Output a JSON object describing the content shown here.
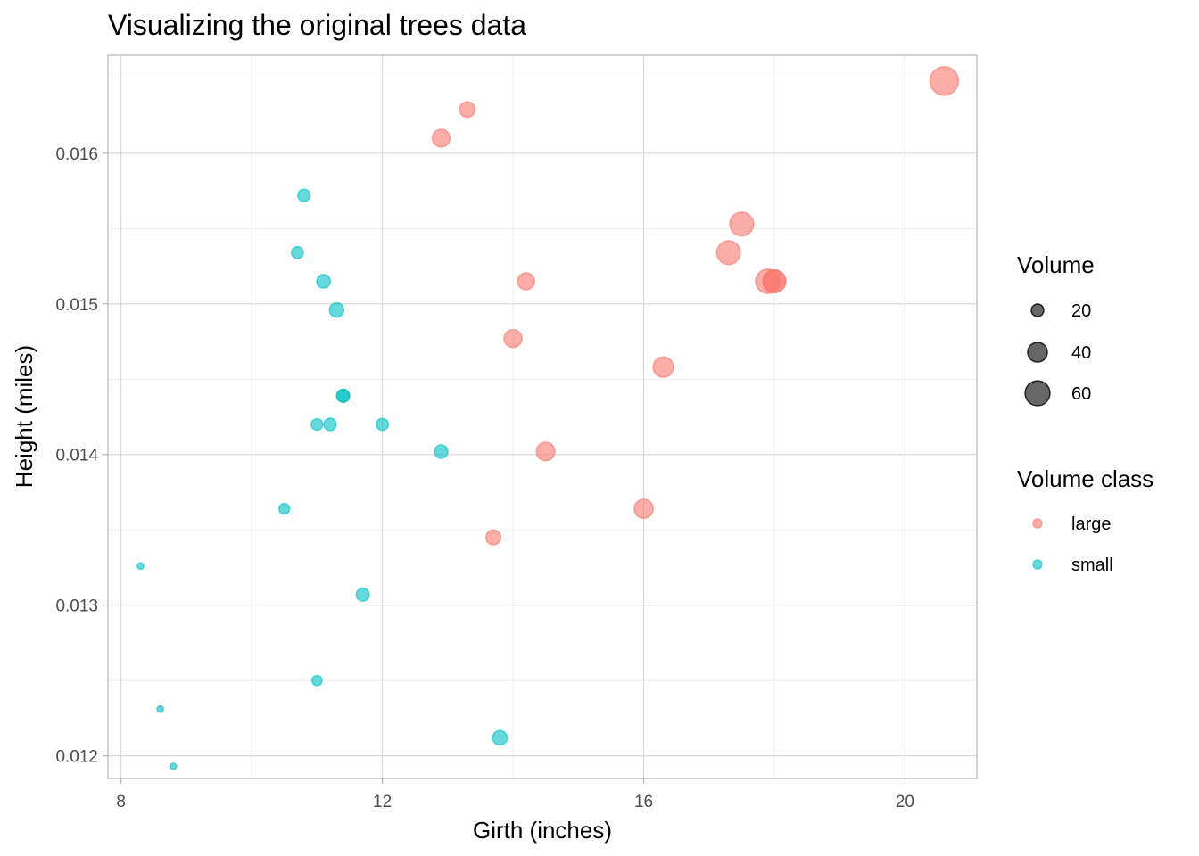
{
  "chart_data": {
    "type": "scatter",
    "title": "Visualizing the original trees data",
    "xlabel": "Girth (inches)",
    "ylabel": "Height (miles)",
    "xlim": [
      7.8,
      21.1
    ],
    "ylim": [
      0.01185,
      0.01665
    ],
    "x_ticks": [
      8,
      12,
      16,
      20
    ],
    "x_tick_labels": [
      "8",
      "12",
      "16",
      "20"
    ],
    "y_ticks": [
      0.012,
      0.013,
      0.014,
      0.015,
      0.016
    ],
    "y_tick_labels": [
      "0.012",
      "0.013",
      "0.014",
      "0.015",
      "0.016"
    ],
    "grid": true,
    "colors": {
      "large": "#F8766D",
      "small": "#00BFC4"
    },
    "size_legend": {
      "title": "Volume",
      "entries": [
        {
          "label": "20",
          "value": 20
        },
        {
          "label": "40",
          "value": 40
        },
        {
          "label": "60",
          "value": 60
        }
      ]
    },
    "color_legend": {
      "title": "Volume class",
      "entries": [
        {
          "label": "large",
          "key": "large"
        },
        {
          "label": "small",
          "key": "small"
        }
      ]
    },
    "points": [
      {
        "x": 8.3,
        "y": 0.01326,
        "volume": 10.3,
        "class": "small"
      },
      {
        "x": 8.6,
        "y": 0.01231,
        "volume": 10.3,
        "class": "small"
      },
      {
        "x": 8.8,
        "y": 0.01193,
        "volume": 10.2,
        "class": "small"
      },
      {
        "x": 10.5,
        "y": 0.01364,
        "volume": 16.4,
        "class": "small"
      },
      {
        "x": 10.7,
        "y": 0.01534,
        "volume": 18.8,
        "class": "small"
      },
      {
        "x": 10.8,
        "y": 0.01572,
        "volume": 19.7,
        "class": "small"
      },
      {
        "x": 11.0,
        "y": 0.0125,
        "volume": 15.6,
        "class": "small"
      },
      {
        "x": 11.0,
        "y": 0.0142,
        "volume": 18.2,
        "class": "small"
      },
      {
        "x": 11.1,
        "y": 0.01515,
        "volume": 22.6,
        "class": "small"
      },
      {
        "x": 11.2,
        "y": 0.0142,
        "volume": 19.9,
        "class": "small"
      },
      {
        "x": 11.3,
        "y": 0.01496,
        "volume": 24.2,
        "class": "small"
      },
      {
        "x": 11.4,
        "y": 0.01439,
        "volume": 21.0,
        "class": "small"
      },
      {
        "x": 11.4,
        "y": 0.01439,
        "volume": 21.4,
        "class": "small"
      },
      {
        "x": 11.7,
        "y": 0.01307,
        "volume": 21.3,
        "class": "small"
      },
      {
        "x": 12.0,
        "y": 0.0142,
        "volume": 19.1,
        "class": "small"
      },
      {
        "x": 12.9,
        "y": 0.01402,
        "volume": 22.2,
        "class": "small"
      },
      {
        "x": 12.9,
        "y": 0.0161,
        "volume": 33.8,
        "class": "large"
      },
      {
        "x": 13.3,
        "y": 0.01629,
        "volume": 27.4,
        "class": "large"
      },
      {
        "x": 13.7,
        "y": 0.01345,
        "volume": 25.7,
        "class": "large"
      },
      {
        "x": 13.8,
        "y": 0.01212,
        "volume": 24.9,
        "class": "small"
      },
      {
        "x": 14.0,
        "y": 0.01477,
        "volume": 34.5,
        "class": "large"
      },
      {
        "x": 14.2,
        "y": 0.01515,
        "volume": 31.7,
        "class": "large"
      },
      {
        "x": 14.5,
        "y": 0.01402,
        "volume": 36.3,
        "class": "large"
      },
      {
        "x": 16.0,
        "y": 0.01364,
        "volume": 38.3,
        "class": "large"
      },
      {
        "x": 16.3,
        "y": 0.01458,
        "volume": 42.6,
        "class": "large"
      },
      {
        "x": 17.3,
        "y": 0.01534,
        "volume": 55.4,
        "class": "large"
      },
      {
        "x": 17.5,
        "y": 0.01553,
        "volume": 55.7,
        "class": "large"
      },
      {
        "x": 17.9,
        "y": 0.01515,
        "volume": 58.3,
        "class": "large"
      },
      {
        "x": 18.0,
        "y": 0.01515,
        "volume": 51.5,
        "class": "large"
      },
      {
        "x": 18.0,
        "y": 0.01515,
        "volume": 51.0,
        "class": "large"
      },
      {
        "x": 20.6,
        "y": 0.01648,
        "volume": 77.0,
        "class": "large"
      }
    ]
  }
}
